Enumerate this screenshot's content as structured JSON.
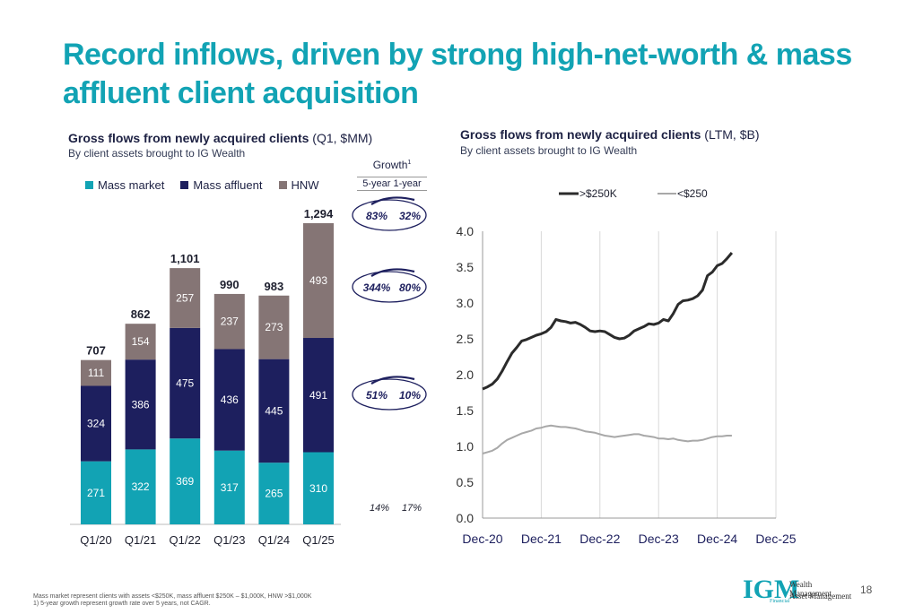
{
  "title": "Record inflows, driven by strong high-net-worth & mass affluent client acquisition",
  "left_chart": {
    "title": "Gross flows from newly acquired clients",
    "title_suffix": "(Q1, $MM)",
    "subtitle": "By client assets brought to IG Wealth",
    "legend": [
      "Mass market",
      "Mass affluent",
      "HNW"
    ],
    "growth_header": "Growth",
    "growth_sup": "1",
    "growth_cols": "5-year 1-year",
    "growth": [
      {
        "five_year": "83%",
        "one_year": "32%"
      },
      {
        "five_year": "344%",
        "one_year": "80%"
      },
      {
        "five_year": "51%",
        "one_year": "10%"
      },
      {
        "five_year": "14%",
        "one_year": "17%"
      }
    ]
  },
  "right_chart": {
    "title": "Gross flows from newly acquired clients",
    "title_suffix": "(LTM, $B)",
    "subtitle": "By client assets brought to IG Wealth"
  },
  "chart_data": [
    {
      "type": "bar",
      "stacked": true,
      "categories": [
        "Q1/20",
        "Q1/21",
        "Q1/22",
        "Q1/23",
        "Q1/24",
        "Q1/25"
      ],
      "series": [
        {
          "name": "Mass market",
          "values": [
            271,
            322,
            369,
            317,
            265,
            310
          ],
          "color": "#12a3b4"
        },
        {
          "name": "Mass affluent",
          "values": [
            324,
            386,
            475,
            436,
            445,
            491
          ],
          "color": "#1d1f5e"
        },
        {
          "name": "HNW",
          "values": [
            111,
            154,
            257,
            237,
            273,
            493
          ],
          "color": "#857575"
        }
      ],
      "totals": [
        707,
        862,
        1101,
        990,
        983,
        1294
      ],
      "total_labels": [
        "707",
        "862",
        "1,101",
        "990",
        "983",
        "1,294"
      ]
    },
    {
      "type": "line",
      "x_ticks": [
        "Dec-20",
        "Dec-21",
        "Dec-22",
        "Dec-23",
        "Dec-24",
        "Dec-25"
      ],
      "ylim": [
        0,
        4.0
      ],
      "y_ticks": [
        "0.0",
        "0.5",
        "1.0",
        "1.5",
        "2.0",
        "2.5",
        "3.0",
        "3.5",
        "4.0"
      ],
      "x": [
        "Dec-20",
        "Jan-21",
        "Feb-21",
        "Mar-21",
        "Apr-21",
        "May-21",
        "Jun-21",
        "Jul-21",
        "Aug-21",
        "Sep-21",
        "Oct-21",
        "Nov-21",
        "Dec-21",
        "Jan-22",
        "Feb-22",
        "Mar-22",
        "Apr-22",
        "May-22",
        "Jun-22",
        "Jul-22",
        "Aug-22",
        "Sep-22",
        "Oct-22",
        "Nov-22",
        "Dec-22",
        "Jan-23",
        "Feb-23",
        "Mar-23",
        "Apr-23",
        "May-23",
        "Jun-23",
        "Jul-23",
        "Aug-23",
        "Sep-23",
        "Oct-23",
        "Nov-23",
        "Dec-23",
        "Jan-24",
        "Feb-24",
        "Mar-24",
        "Apr-24",
        "May-24",
        "Jun-24",
        "Jul-24",
        "Aug-24",
        "Sep-24",
        "Oct-24",
        "Nov-24",
        "Dec-24",
        "Jan-25",
        "Feb-25",
        "Mar-25"
      ],
      "series": [
        {
          "name": ">$250K",
          "color": "#2b2b2b",
          "values": [
            1.8,
            1.83,
            1.87,
            1.94,
            2.05,
            2.18,
            2.3,
            2.38,
            2.47,
            2.49,
            2.52,
            2.55,
            2.57,
            2.6,
            2.66,
            2.77,
            2.75,
            2.74,
            2.72,
            2.73,
            2.7,
            2.66,
            2.61,
            2.6,
            2.61,
            2.6,
            2.56,
            2.52,
            2.5,
            2.51,
            2.55,
            2.61,
            2.64,
            2.67,
            2.71,
            2.7,
            2.72,
            2.77,
            2.75,
            2.85,
            2.98,
            3.03,
            3.04,
            3.06,
            3.1,
            3.18,
            3.38,
            3.43,
            3.52,
            3.55,
            3.62,
            3.7
          ]
        },
        {
          "name": "<$250",
          "color": "#a8a8a8",
          "values": [
            0.9,
            0.92,
            0.94,
            0.98,
            1.04,
            1.09,
            1.12,
            1.15,
            1.18,
            1.2,
            1.22,
            1.25,
            1.26,
            1.28,
            1.29,
            1.28,
            1.27,
            1.27,
            1.26,
            1.25,
            1.23,
            1.21,
            1.2,
            1.19,
            1.17,
            1.15,
            1.14,
            1.13,
            1.14,
            1.15,
            1.16,
            1.17,
            1.17,
            1.15,
            1.14,
            1.13,
            1.11,
            1.11,
            1.1,
            1.11,
            1.09,
            1.08,
            1.07,
            1.08,
            1.08,
            1.09,
            1.11,
            1.13,
            1.14,
            1.14,
            1.15,
            1.15
          ]
        }
      ]
    }
  ],
  "footnotes": [
    "Mass market represent clients with assets <$250K, mass affluent $250K – $1,000K, HNW >$1,000K",
    "1) 5-year growth represent growth rate over 5 years, not CAGR."
  ],
  "logo": {
    "mark": "IGM",
    "line1": "Wealth Management",
    "line2": "Asset Management",
    "tag": "Financial"
  },
  "page_number": "18"
}
